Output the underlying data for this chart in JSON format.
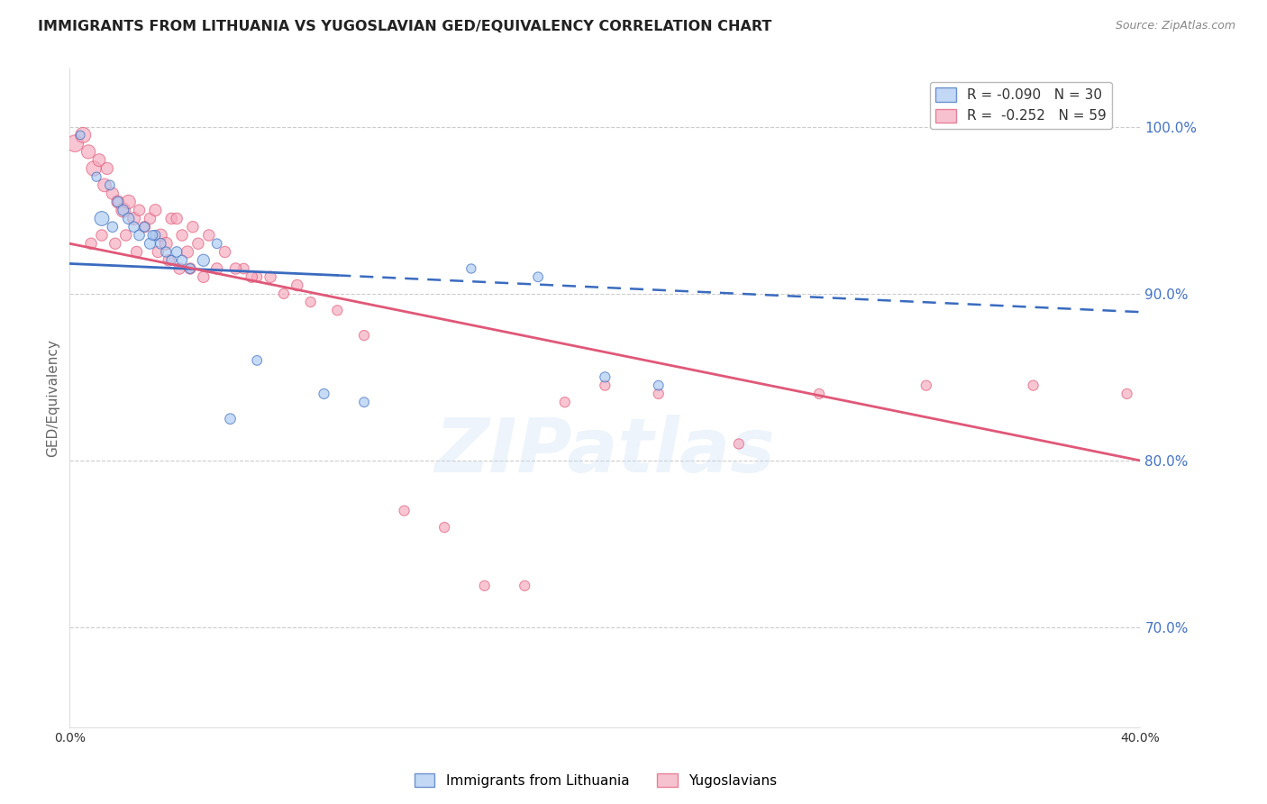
{
  "title": "IMMIGRANTS FROM LITHUANIA VS YUGOSLAVIAN GED/EQUIVALENCY CORRELATION CHART",
  "source": "Source: ZipAtlas.com",
  "ylabel": "GED/Equivalency",
  "watermark": "ZIPatlas",
  "right_yticks": [
    100.0,
    90.0,
    80.0,
    70.0
  ],
  "right_ytick_labels": [
    "100.0%",
    "90.0%",
    "80.0%",
    "70.0%"
  ],
  "blue_color": "#a8c8f0",
  "pink_color": "#f5a8bc",
  "blue_line_color": "#3a6bbf",
  "pink_line_color": "#e05878",
  "title_color": "#222222",
  "source_color": "#888888",
  "right_axis_color": "#4472c4",
  "grid_color": "#cccccc",
  "background_color": "#ffffff",
  "blue_scatter_x": [
    0.4,
    1.0,
    1.5,
    1.8,
    2.0,
    2.2,
    2.4,
    2.6,
    2.8,
    3.0,
    3.2,
    3.4,
    3.6,
    3.8,
    4.0,
    4.5,
    5.0,
    5.5,
    6.0,
    7.0,
    9.5,
    11.0,
    15.0,
    17.5,
    20.0,
    22.0,
    1.2,
    1.6,
    3.1,
    4.2
  ],
  "blue_scatter_y": [
    99.5,
    97.0,
    96.5,
    95.5,
    95.0,
    94.5,
    94.0,
    93.5,
    94.0,
    93.0,
    93.5,
    93.0,
    92.5,
    92.0,
    92.5,
    91.5,
    92.0,
    93.0,
    82.5,
    86.0,
    84.0,
    83.5,
    91.5,
    91.0,
    85.0,
    84.5,
    94.5,
    94.0,
    93.5,
    92.0
  ],
  "blue_scatter_sizes": [
    50,
    55,
    60,
    70,
    75,
    80,
    70,
    70,
    60,
    75,
    65,
    70,
    65,
    60,
    70,
    60,
    90,
    60,
    70,
    60,
    65,
    60,
    55,
    60,
    65,
    60,
    130,
    70,
    60,
    65
  ],
  "pink_scatter_x": [
    0.2,
    0.5,
    0.7,
    0.9,
    1.1,
    1.3,
    1.4,
    1.6,
    1.8,
    2.0,
    2.2,
    2.4,
    2.6,
    2.8,
    3.0,
    3.2,
    3.4,
    3.6,
    3.8,
    4.0,
    4.2,
    4.4,
    4.6,
    4.8,
    5.2,
    5.8,
    6.5,
    7.0,
    8.0,
    9.0,
    10.0,
    11.0,
    12.5,
    14.0,
    15.5,
    17.0,
    18.5,
    20.0,
    22.0,
    25.0,
    28.0,
    32.0,
    36.0,
    39.5,
    0.8,
    1.2,
    1.7,
    2.1,
    2.5,
    3.3,
    3.7,
    4.1,
    4.5,
    5.0,
    5.5,
    6.2,
    6.8,
    7.5,
    8.5
  ],
  "pink_scatter_y": [
    99.0,
    99.5,
    98.5,
    97.5,
    98.0,
    96.5,
    97.5,
    96.0,
    95.5,
    95.0,
    95.5,
    94.5,
    95.0,
    94.0,
    94.5,
    95.0,
    93.5,
    93.0,
    94.5,
    94.5,
    93.5,
    92.5,
    94.0,
    93.0,
    93.5,
    92.5,
    91.5,
    91.0,
    90.0,
    89.5,
    89.0,
    87.5,
    77.0,
    76.0,
    72.5,
    72.5,
    83.5,
    84.5,
    84.0,
    81.0,
    84.0,
    84.5,
    84.5,
    84.0,
    93.0,
    93.5,
    93.0,
    93.5,
    92.5,
    92.5,
    92.0,
    91.5,
    91.5,
    91.0,
    91.5,
    91.5,
    91.0,
    91.0,
    90.5
  ],
  "pink_scatter_sizes": [
    180,
    150,
    120,
    140,
    100,
    110,
    90,
    90,
    100,
    130,
    120,
    100,
    80,
    80,
    80,
    90,
    100,
    100,
    80,
    80,
    80,
    90,
    80,
    80,
    80,
    80,
    70,
    65,
    65,
    65,
    65,
    65,
    65,
    65,
    65,
    65,
    65,
    65,
    65,
    65,
    65,
    65,
    65,
    65,
    80,
    80,
    80,
    80,
    80,
    80,
    80,
    80,
    80,
    80,
    80,
    80,
    80,
    80,
    80
  ],
  "xlim": [
    0.0,
    40.0
  ],
  "ylim": [
    64.0,
    103.5
  ],
  "blue_line_x0": 0.0,
  "blue_line_x1": 10.0,
  "blue_line_x2": 40.0,
  "blue_line_y0": 91.8,
  "blue_line_y1": 91.1,
  "blue_line_y2": 88.9,
  "pink_line_x0": 0.0,
  "pink_line_x1": 40.0,
  "pink_line_y0": 93.0,
  "pink_line_y1": 80.0
}
